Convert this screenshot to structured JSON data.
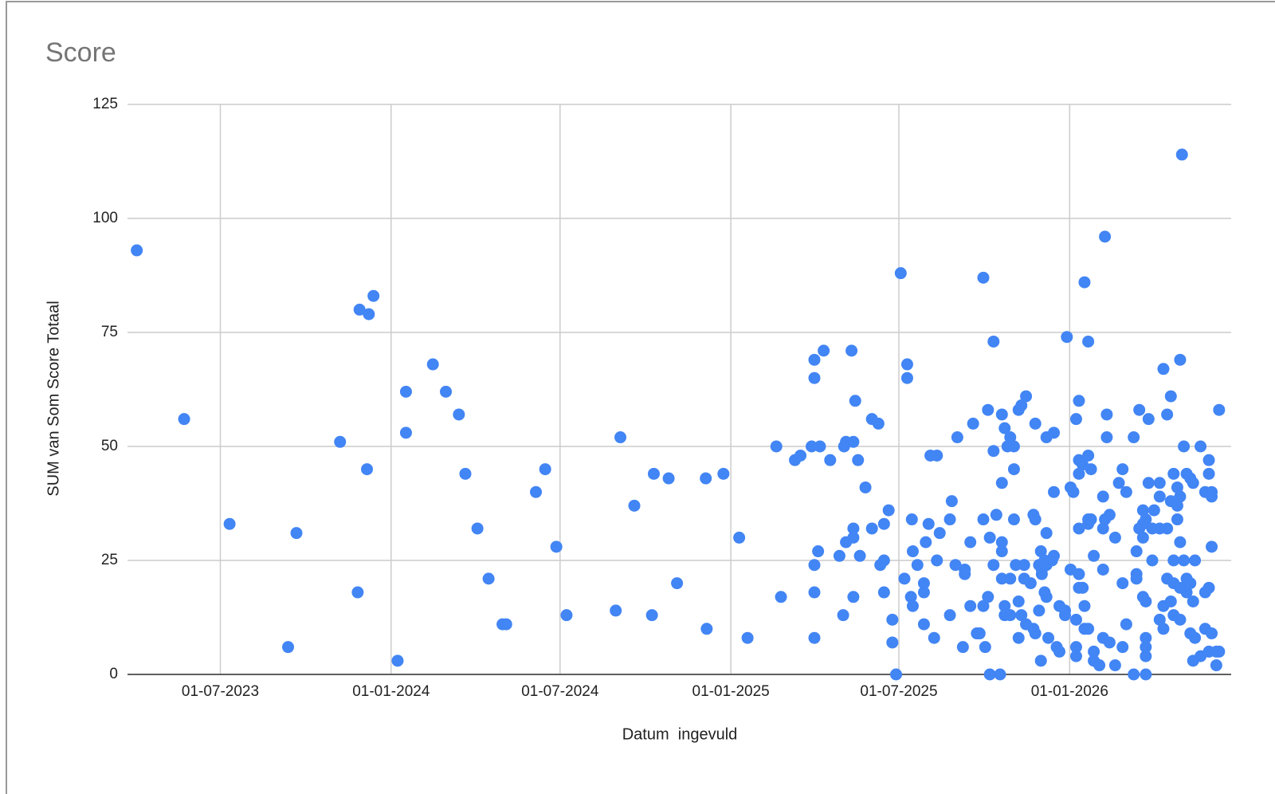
{
  "chart_data": {
    "type": "scatter",
    "title": "Score",
    "x_label": "Datum  ingevuld",
    "y_label": "SUM van Som Score Totaal",
    "color": "#4285f4",
    "grid": true,
    "xlim": [
      "2023-03-23",
      "2026-06-24"
    ],
    "ylim": [
      0,
      125
    ],
    "xticks": [
      {
        "value": "2023-07-01",
        "label": "01-07-2023"
      },
      {
        "value": "2024-01-01",
        "label": "01-01-2024"
      },
      {
        "value": "2024-07-01",
        "label": "01-07-2024"
      },
      {
        "value": "2025-01-01",
        "label": "01-01-2025"
      },
      {
        "value": "2025-07-01",
        "label": "01-07-2025"
      },
      {
        "value": "2026-01-01",
        "label": "01-01-2026"
      }
    ],
    "yticks": [
      0,
      25,
      50,
      75,
      100,
      125
    ],
    "x": [
      "2023-04-02",
      "2023-05-23",
      "2023-07-11",
      "2023-09-12",
      "2023-09-21",
      "2023-11-07",
      "2023-11-26",
      "2023-11-28",
      "2023-12-06",
      "2023-12-08",
      "2023-12-13",
      "2024-01-08",
      "2024-01-17",
      "2024-01-17",
      "2024-02-15",
      "2024-02-29",
      "2024-03-14",
      "2024-03-21",
      "2024-04-03",
      "2024-04-15",
      "2024-04-30",
      "2024-05-04",
      "2024-06-05",
      "2024-06-15",
      "2024-06-27",
      "2024-07-08",
      "2024-08-30",
      "2024-09-04",
      "2024-09-19",
      "2024-10-08",
      "2024-10-10",
      "2024-10-26",
      "2024-11-04",
      "2024-12-05",
      "2024-12-06",
      "2024-12-24",
      "2025-01-10",
      "2025-01-19",
      "2025-02-19",
      "2025-02-24",
      "2025-03-11",
      "2025-03-17",
      "2025-03-29",
      "2025-04-01",
      "2025-04-01",
      "2025-04-01",
      "2025-04-01",
      "2025-04-01",
      "2025-04-05",
      "2025-04-07",
      "2025-04-11",
      "2025-04-18",
      "2025-04-28",
      "2025-05-02",
      "2025-05-03",
      "2025-05-05",
      "2025-05-05",
      "2025-05-11",
      "2025-05-13",
      "2025-05-13",
      "2025-05-13",
      "2025-05-13",
      "2025-05-15",
      "2025-05-18",
      "2025-05-20",
      "2025-05-26",
      "2025-06-02",
      "2025-06-02",
      "2025-06-09",
      "2025-06-11",
      "2025-06-15",
      "2025-06-15",
      "2025-06-15",
      "2025-06-20",
      "2025-06-24",
      "2025-06-24",
      "2025-06-28",
      "2025-07-03",
      "2025-07-07",
      "2025-07-10",
      "2025-07-10",
      "2025-07-14",
      "2025-07-15",
      "2025-07-16",
      "2025-07-16",
      "2025-07-21",
      "2025-07-28",
      "2025-07-28",
      "2025-07-28",
      "2025-07-30",
      "2025-08-02",
      "2025-08-04",
      "2025-08-08",
      "2025-08-11",
      "2025-08-11",
      "2025-08-14",
      "2025-08-25",
      "2025-08-25",
      "2025-08-27",
      "2025-08-31",
      "2025-09-02",
      "2025-09-08",
      "2025-09-10",
      "2025-09-10",
      "2025-09-16",
      "2025-09-16",
      "2025-09-19",
      "2025-09-23",
      "2025-09-26",
      "2025-09-30",
      "2025-09-30",
      "2025-09-30",
      "2025-10-02",
      "2025-10-05",
      "2025-10-05",
      "2025-10-07",
      "2025-10-07",
      "2025-10-11",
      "2025-10-11",
      "2025-10-11",
      "2025-10-14",
      "2025-10-18",
      "2025-10-20",
      "2025-10-20",
      "2025-10-20",
      "2025-10-20",
      "2025-10-20",
      "2025-10-23",
      "2025-10-23",
      "2025-10-23",
      "2025-10-26",
      "2025-10-29",
      "2025-10-29",
      "2025-10-29",
      "2025-11-02",
      "2025-11-02",
      "2025-11-02",
      "2025-11-04",
      "2025-11-07",
      "2025-11-07",
      "2025-11-07",
      "2025-11-10",
      "2025-11-10",
      "2025-11-13",
      "2025-11-13",
      "2025-11-15",
      "2025-11-15",
      "2025-11-20",
      "2025-11-23",
      "2025-11-23",
      "2025-11-25",
      "2025-11-25",
      "2025-11-25",
      "2025-11-29",
      "2025-11-29",
      "2025-12-01",
      "2025-12-01",
      "2025-12-02",
      "2025-12-02",
      "2025-12-05",
      "2025-12-05",
      "2025-12-07",
      "2025-12-07",
      "2025-12-07",
      "2025-12-07",
      "2025-12-09",
      "2025-12-13",
      "2025-12-15",
      "2025-12-15",
      "2025-12-15",
      "2025-12-18",
      "2025-12-21",
      "2025-12-21",
      "2025-12-27",
      "2025-12-27",
      "2025-12-29",
      "2026-01-02",
      "2026-01-02",
      "2026-01-05",
      "2026-01-08",
      "2026-01-08",
      "2026-01-08",
      "2026-01-08",
      "2026-01-11",
      "2026-01-11",
      "2026-01-11",
      "2026-01-11",
      "2026-01-11",
      "2026-01-11",
      "2026-01-15",
      "2026-01-15",
      "2026-01-17",
      "2026-01-17",
      "2026-01-17",
      "2026-01-21",
      "2026-01-21",
      "2026-01-21",
      "2026-01-21",
      "2026-01-21",
      "2026-01-24",
      "2026-01-24",
      "2026-01-27",
      "2026-01-27",
      "2026-01-27",
      "2026-02-02",
      "2026-02-06",
      "2026-02-06",
      "2026-02-06",
      "2026-02-06",
      "2026-02-08",
      "2026-02-08",
      "2026-02-10",
      "2026-02-10",
      "2026-02-13",
      "2026-02-13",
      "2026-02-19",
      "2026-02-19",
      "2026-02-23",
      "2026-02-27",
      "2026-02-27",
      "2026-02-27",
      "2026-03-03",
      "2026-03-03",
      "2026-03-11",
      "2026-03-11",
      "2026-03-14",
      "2026-03-14",
      "2026-03-14",
      "2026-03-17",
      "2026-03-17",
      "2026-03-21",
      "2026-03-21",
      "2026-03-21",
      "2026-03-21",
      "2026-03-24",
      "2026-03-24",
      "2026-03-24",
      "2026-03-24",
      "2026-03-24",
      "2026-03-24",
      "2026-03-27",
      "2026-03-27",
      "2026-03-31",
      "2026-03-31",
      "2026-04-02",
      "2026-04-08",
      "2026-04-08",
      "2026-04-08",
      "2026-04-08",
      "2026-04-12",
      "2026-04-12",
      "2026-04-12",
      "2026-04-16",
      "2026-04-16",
      "2026-04-16",
      "2026-04-20",
      "2026-04-20",
      "2026-04-20",
      "2026-04-23",
      "2026-04-23",
      "2026-04-23",
      "2026-04-23",
      "2026-04-27",
      "2026-04-27",
      "2026-04-27",
      "2026-04-30",
      "2026-04-30",
      "2026-04-30",
      "2026-04-30",
      "2026-04-30",
      "2026-05-02",
      "2026-05-04",
      "2026-05-04",
      "2026-05-07",
      "2026-05-07",
      "2026-05-07",
      "2026-05-11",
      "2026-05-11",
      "2026-05-11",
      "2026-05-14",
      "2026-05-14",
      "2026-05-14",
      "2026-05-16",
      "2026-05-16",
      "2026-05-22",
      "2026-05-22",
      "2026-05-27",
      "2026-05-27",
      "2026-05-27",
      "2026-05-31",
      "2026-05-31",
      "2026-05-31",
      "2026-05-31",
      "2026-06-03",
      "2026-06-03",
      "2026-06-03",
      "2026-06-03",
      "2026-06-08",
      "2026-06-08",
      "2026-06-11",
      "2026-06-11"
    ],
    "values": [
      93,
      56,
      33,
      6,
      31,
      51,
      18,
      80,
      45,
      79,
      83,
      3,
      62,
      53,
      68,
      62,
      57,
      44,
      32,
      21,
      11,
      11,
      40,
      45,
      28,
      13,
      14,
      52,
      37,
      13,
      44,
      43,
      20,
      43,
      10,
      44,
      30,
      8,
      50,
      17,
      47,
      48,
      50,
      69,
      65,
      24,
      18,
      8,
      27,
      50,
      71,
      47,
      26,
      13,
      50,
      29,
      51,
      71,
      32,
      17,
      30,
      51,
      60,
      47,
      26,
      41,
      32,
      56,
      55,
      24,
      33,
      18,
      25,
      36,
      12,
      7,
      0,
      88,
      21,
      68,
      65,
      17,
      34,
      15,
      27,
      24,
      18,
      20,
      11,
      29,
      33,
      48,
      8,
      48,
      25,
      31,
      13,
      34,
      38,
      24,
      52,
      6,
      22,
      23,
      29,
      15,
      55,
      9,
      9,
      87,
      34,
      15,
      6,
      58,
      17,
      0,
      30,
      73,
      49,
      24,
      35,
      0,
      42,
      57,
      29,
      27,
      21,
      54,
      15,
      13,
      50,
      21,
      52,
      13,
      45,
      34,
      50,
      24,
      58,
      8,
      16,
      59,
      13,
      21,
      24,
      61,
      11,
      20,
      35,
      10,
      9,
      34,
      55,
      14,
      24,
      27,
      3,
      22,
      23,
      18,
      25,
      52,
      17,
      31,
      24,
      8,
      25,
      40,
      53,
      26,
      6,
      5,
      15,
      13,
      14,
      74,
      41,
      23,
      40,
      12,
      56,
      6,
      4,
      47,
      60,
      44,
      32,
      19,
      22,
      19,
      46,
      86,
      15,
      10,
      73,
      33,
      48,
      10,
      34,
      45,
      34,
      5,
      3,
      26,
      2,
      39,
      32,
      23,
      8,
      96,
      34,
      52,
      57,
      35,
      7,
      2,
      30,
      42,
      45,
      20,
      6,
      40,
      11,
      0,
      52,
      27,
      21,
      22,
      58,
      32,
      36,
      17,
      33,
      30,
      34,
      16,
      8,
      6,
      4,
      0,
      42,
      56,
      32,
      25,
      36,
      42,
      12,
      39,
      32,
      67,
      10,
      15,
      57,
      21,
      32,
      61,
      16,
      38,
      44,
      25,
      13,
      20,
      41,
      37,
      34,
      69,
      29,
      39,
      19,
      12,
      114,
      50,
      25,
      44,
      21,
      18,
      9,
      20,
      43,
      42,
      3,
      16,
      25,
      8,
      50,
      4,
      40,
      10,
      18,
      19,
      44,
      47,
      5,
      40,
      39,
      28,
      9,
      2,
      5,
      58,
      5
    ]
  }
}
